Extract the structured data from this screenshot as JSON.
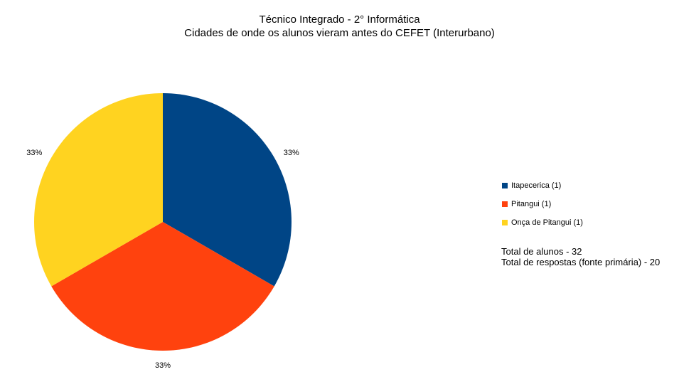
{
  "chart_data": {
    "type": "pie",
    "title": "Técnico Integrado - 2° Informática",
    "subtitle": "Cidades de onde os alunos vieram antes do CEFET (Interurbano)",
    "slices": [
      {
        "label": "Itapecerica (1)",
        "value": 1,
        "percent_label": "33%",
        "color": "#004586"
      },
      {
        "label": "Pitangui (1)",
        "value": 1,
        "percent_label": "33%",
        "color": "#ff420e"
      },
      {
        "label": "Onça de Pitangui (1)",
        "value": 1,
        "percent_label": "33%",
        "color": "#ffd320"
      }
    ],
    "legend_position": "right"
  },
  "notes": {
    "total_students": "Total de alunos - 32",
    "total_responses": "Total de respostas (fonte primária) - 20"
  }
}
